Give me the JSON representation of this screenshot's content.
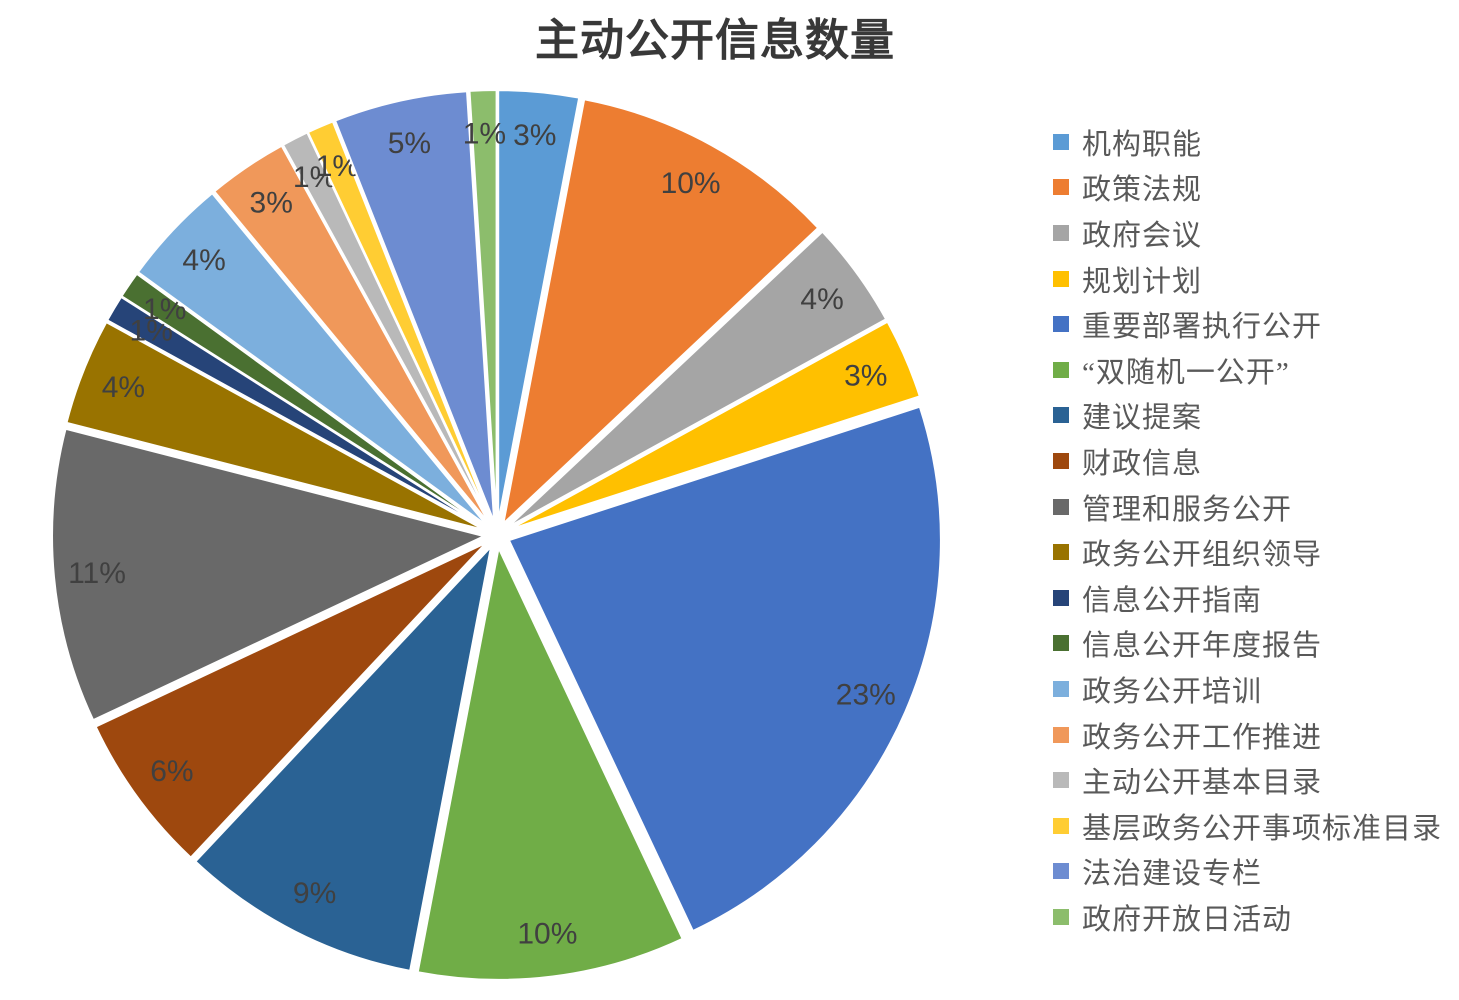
{
  "title": "主动公开信息数量",
  "chart_data": {
    "type": "pie",
    "title": "主动公开信息数量",
    "unit": "percent",
    "start_angle_deg": 0,
    "direction": "clockwise",
    "exploded": true,
    "legend_position": "right",
    "data_labels": "percent-inside",
    "categories": [
      "机构职能",
      "政策法规",
      "政府会议",
      "规划计划",
      "重要部署执行公开",
      "“双随机一公开”",
      "建议提案",
      "财政信息",
      "管理和服务公开",
      "政务公开组织领导",
      "信息公开指南",
      "信息公开年度报告",
      "政务公开培训",
      "政务公开工作推进",
      "主动公开基本目录",
      "基层政务公开事项标准目录",
      "法治建设专栏",
      "政府开放日活动"
    ],
    "values": [
      3,
      10,
      4,
      3,
      23,
      10,
      9,
      6,
      11,
      4,
      1,
      1,
      4,
      3,
      1,
      1,
      5,
      1
    ],
    "value_labels": [
      "3%",
      "10%",
      "4%",
      "3%",
      "23%",
      "10%",
      "9%",
      "6%",
      "11%",
      "4%",
      "1%",
      "1%",
      "4%",
      "3%",
      "1%",
      "1%",
      "5%",
      "1%"
    ],
    "colors": [
      "#5B9BD5",
      "#ED7D31",
      "#A5A5A5",
      "#FFC000",
      "#4472C4",
      "#70AD47",
      "#2A6294",
      "#9E480E",
      "#696969",
      "#997300",
      "#264478",
      "#4A7031",
      "#7CAFDD",
      "#F0985A",
      "#B9B9B9",
      "#FFCD33",
      "#6D8CD1",
      "#8CBD6C"
    ]
  },
  "styles": {
    "background": "#FFFFFF",
    "title_color": "#383838",
    "slice_label_color": "#404040",
    "legend_text_color": "#595959"
  }
}
